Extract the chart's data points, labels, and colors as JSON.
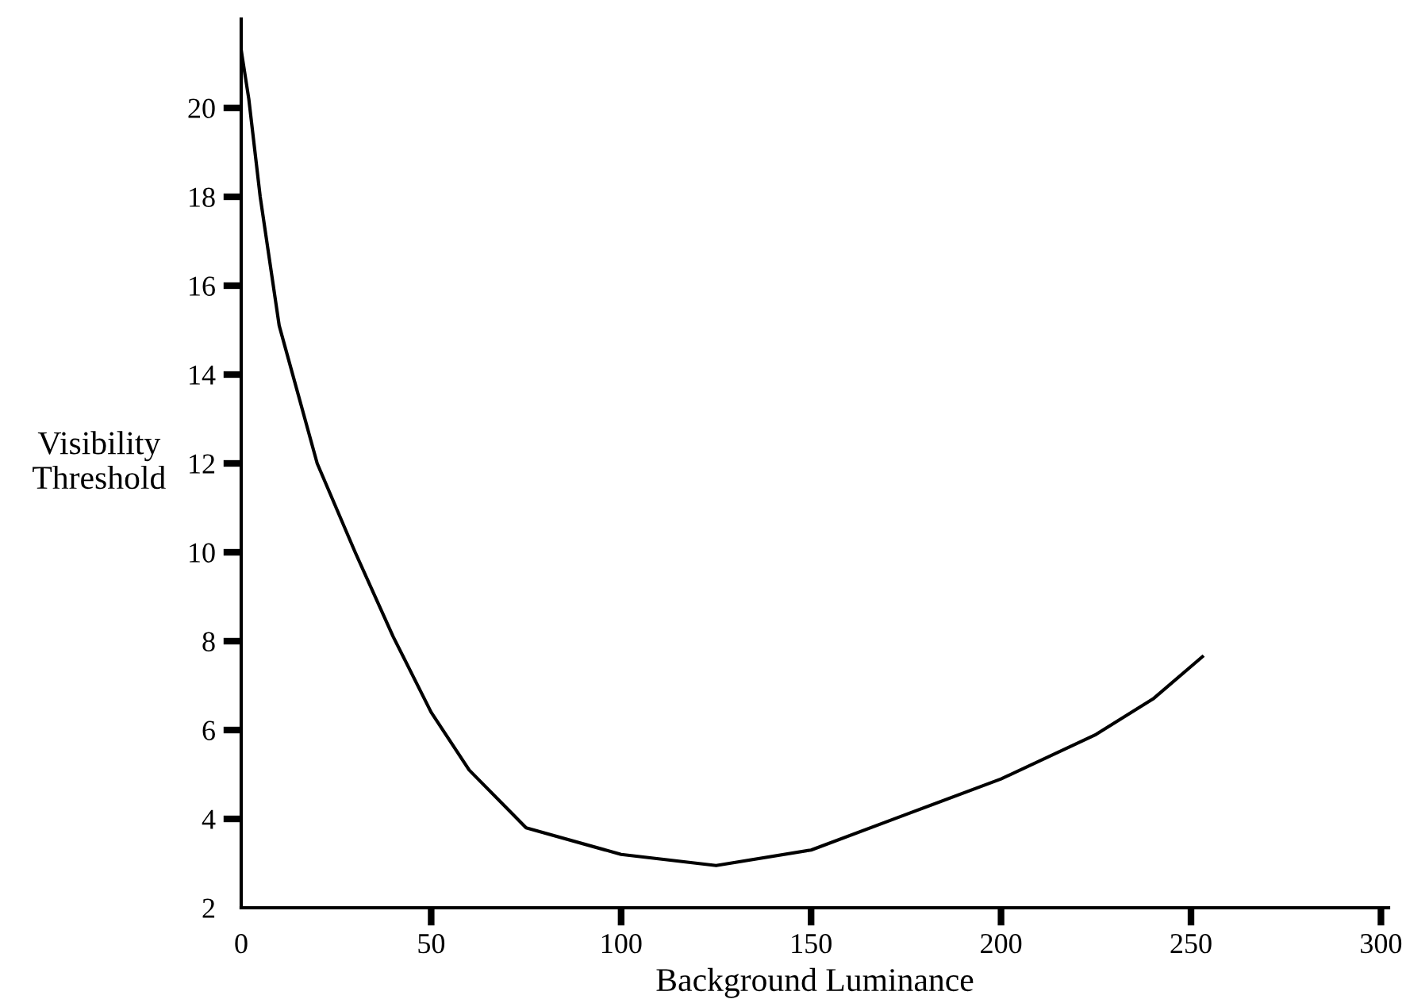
{
  "chart_data": {
    "type": "line",
    "xlabel": "Background Luminance",
    "ylabel": "Visibility\nThreshold",
    "x": [
      0,
      2,
      5,
      10,
      20,
      30,
      40,
      50,
      60,
      75,
      100,
      125,
      150,
      175,
      200,
      225,
      240,
      253
    ],
    "series": [
      {
        "color": "#000000",
        "values": [
          21.3,
          20.2,
          18,
          15.1,
          12,
          10,
          8.1,
          6.4,
          5.1,
          3.8,
          3.2,
          2.95,
          3.3,
          4.1,
          4.9,
          5.9,
          6.7,
          7.65
        ]
      }
    ],
    "xlim": [
      0,
      302
    ],
    "ylim": [
      2,
      22
    ],
    "xticks": [
      0,
      50,
      100,
      150,
      200,
      250,
      300
    ],
    "yticks": [
      2,
      4,
      6,
      8,
      10,
      12,
      14,
      16,
      18,
      20
    ],
    "grid": false,
    "marker": "none",
    "line_style": "solid"
  }
}
